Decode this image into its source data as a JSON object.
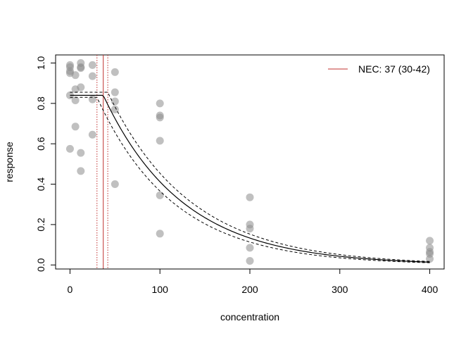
{
  "chart_data": {
    "type": "scatter",
    "xlabel": "concentration",
    "ylabel": "response",
    "xlim": [
      -16,
      416
    ],
    "ylim": [
      -0.02,
      1.04
    ],
    "x_ticks": [
      0,
      100,
      200,
      300,
      400
    ],
    "y_ticks": [
      0.0,
      0.2,
      0.4,
      0.6,
      0.8,
      1.0
    ],
    "x_tick_labels": [
      "0",
      "100",
      "200",
      "300",
      "400"
    ],
    "y_tick_labels": [
      "0.0",
      "0.2",
      "0.4",
      "0.6",
      "0.8",
      "1.0"
    ],
    "grid": false,
    "legend_position": "top-right",
    "legend_label": "NEC: 37 (30-42)",
    "nec": {
      "estimate": 37,
      "lower": 30,
      "upper": 42
    },
    "curve": {
      "top": 0.84,
      "top_lower": 0.83,
      "top_upper": 0.855,
      "decay_rate": 0.0113,
      "decay_rate_lower": 0.0109,
      "decay_rate_upper": 0.0117
    },
    "points": [
      {
        "x": 0,
        "y": 0.99
      },
      {
        "x": 0,
        "y": 0.98
      },
      {
        "x": 0,
        "y": 0.96
      },
      {
        "x": 0,
        "y": 0.95
      },
      {
        "x": 0,
        "y": 0.84
      },
      {
        "x": 0,
        "y": 0.575
      },
      {
        "x": 6,
        "y": 0.94
      },
      {
        "x": 6,
        "y": 0.87
      },
      {
        "x": 6,
        "y": 0.815
      },
      {
        "x": 6,
        "y": 0.685
      },
      {
        "x": 12,
        "y": 1.0
      },
      {
        "x": 12,
        "y": 0.98
      },
      {
        "x": 12,
        "y": 0.975
      },
      {
        "x": 12,
        "y": 0.88
      },
      {
        "x": 12,
        "y": 0.555
      },
      {
        "x": 12,
        "y": 0.465
      },
      {
        "x": 25,
        "y": 0.99
      },
      {
        "x": 25,
        "y": 0.935
      },
      {
        "x": 25,
        "y": 0.82
      },
      {
        "x": 25,
        "y": 0.645
      },
      {
        "x": 50,
        "y": 0.955
      },
      {
        "x": 50,
        "y": 0.855
      },
      {
        "x": 50,
        "y": 0.81
      },
      {
        "x": 50,
        "y": 0.77
      },
      {
        "x": 50,
        "y": 0.4
      },
      {
        "x": 100,
        "y": 0.8
      },
      {
        "x": 100,
        "y": 0.74
      },
      {
        "x": 100,
        "y": 0.73
      },
      {
        "x": 100,
        "y": 0.615
      },
      {
        "x": 100,
        "y": 0.345
      },
      {
        "x": 100,
        "y": 0.155
      },
      {
        "x": 200,
        "y": 0.335
      },
      {
        "x": 200,
        "y": 0.2
      },
      {
        "x": 200,
        "y": 0.18
      },
      {
        "x": 200,
        "y": 0.085
      },
      {
        "x": 200,
        "y": 0.02
      },
      {
        "x": 400,
        "y": 0.12
      },
      {
        "x": 400,
        "y": 0.085
      },
      {
        "x": 400,
        "y": 0.065
      },
      {
        "x": 400,
        "y": 0.055
      },
      {
        "x": 400,
        "y": 0.03
      }
    ],
    "colors": {
      "points": "#8c8c8c",
      "curve": "#000000",
      "nec_line": "#c0302f",
      "axis": "#000000"
    }
  }
}
